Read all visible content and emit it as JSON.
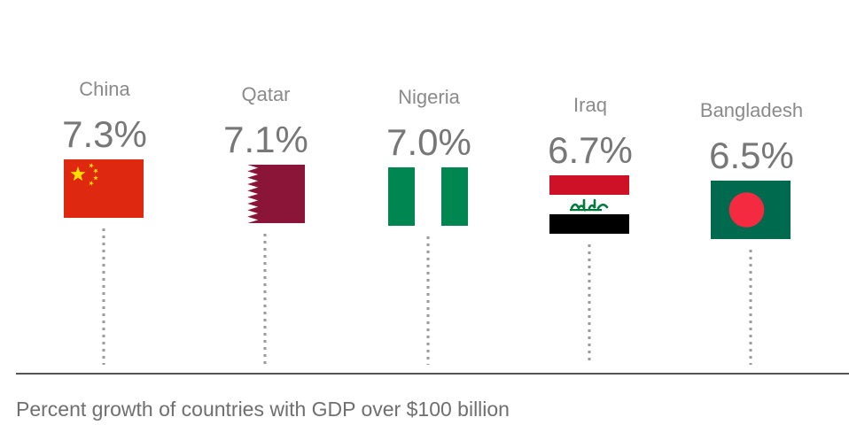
{
  "chart_data": {
    "type": "scatter",
    "categories": [
      "China",
      "Qatar",
      "Nigeria",
      "Iraq",
      "Bangladesh"
    ],
    "values": [
      7.3,
      7.1,
      7.0,
      6.7,
      6.5
    ],
    "value_labels": [
      "7.3%",
      "7.1%",
      "7.0%",
      "6.7%",
      "6.5%"
    ],
    "caption": "Percent growth of countries with GDP over $100 billion",
    "ylim": [
      0,
      8.5
    ],
    "grid": false,
    "flag_icons": [
      "china-flag-icon",
      "qatar-flag-icon",
      "nigeria-flag-icon",
      "iraq-flag-icon",
      "bangladesh-flag-icon"
    ],
    "colors": {
      "china_red": "#de2910",
      "china_yellow": "#ffde00",
      "qatar_maroon": "#8a1538",
      "nigeria_green": "#008751",
      "iraq_red": "#ce1126",
      "iraq_green": "#007a3d",
      "bangladesh_green": "#006a4e",
      "bangladesh_red": "#f42a41",
      "stem": "#9a9a9a",
      "axis": "#555555"
    }
  }
}
